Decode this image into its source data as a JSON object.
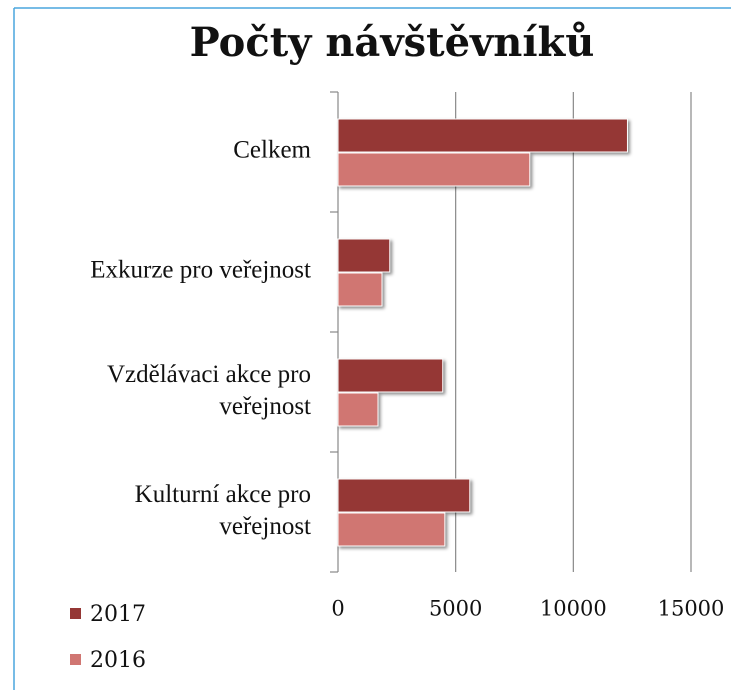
{
  "chart_data": {
    "type": "barh",
    "title": "Počty návštěvníků",
    "categories": [
      "Celkem",
      "Exkurze pro veřejnost",
      "Vzdělávaci akce pro veřejnost",
      "Kulturní akce pro veřejnost"
    ],
    "series": [
      {
        "name": "2017",
        "color": "#953735",
        "values": [
          12300,
          2200,
          4450,
          5600
        ]
      },
      {
        "name": "2016",
        "color": "#d07672",
        "values": [
          8150,
          1870,
          1700,
          4540
        ]
      }
    ],
    "xlim": [
      0,
      15000
    ],
    "xticks": [
      0,
      5000,
      10000,
      15000
    ],
    "grid": true
  }
}
